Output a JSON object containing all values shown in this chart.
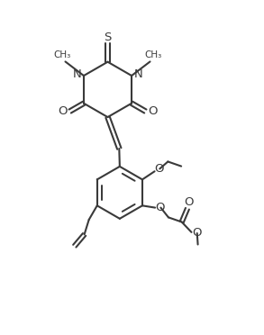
{
  "background_color": "#ffffff",
  "line_color": "#3a3a3a",
  "line_width": 1.5,
  "figsize": [
    2.93,
    3.72
  ],
  "dpi": 100,
  "xlim": [
    0,
    10
  ],
  "ylim": [
    0,
    13
  ]
}
